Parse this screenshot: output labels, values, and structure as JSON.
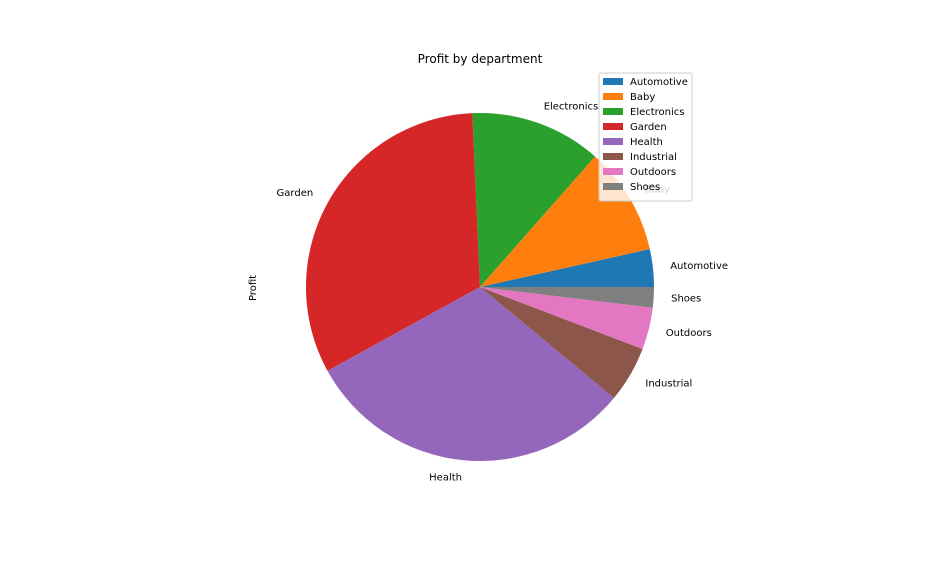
{
  "chart_data": {
    "type": "pie",
    "title": "Profit by department",
    "ylabel": "Profit",
    "start_angle_deg": 0,
    "direction": "counterclockwise",
    "slices": [
      {
        "label": "Automotive",
        "value": 3.5,
        "color": "#1f77b4"
      },
      {
        "label": "Baby",
        "value": 10.0,
        "color": "#ff7f0e"
      },
      {
        "label": "Electronics",
        "value": 12.2,
        "color": "#2ca02c"
      },
      {
        "label": "Garden",
        "value": 32.3,
        "color": "#d62728"
      },
      {
        "label": "Health",
        "value": 31.0,
        "color": "#9467bd"
      },
      {
        "label": "Industrial",
        "value": 5.2,
        "color": "#8c564b"
      },
      {
        "label": "Outdoors",
        "value": 3.9,
        "color": "#e377c2"
      },
      {
        "label": "Shoes",
        "value": 1.9,
        "color": "#7f7f7f"
      }
    ],
    "legend": {
      "placement": "upper-right",
      "entries": [
        "Automotive",
        "Baby",
        "Electronics",
        "Garden",
        "Health",
        "Industrial",
        "Outdoors",
        "Shoes"
      ]
    }
  }
}
